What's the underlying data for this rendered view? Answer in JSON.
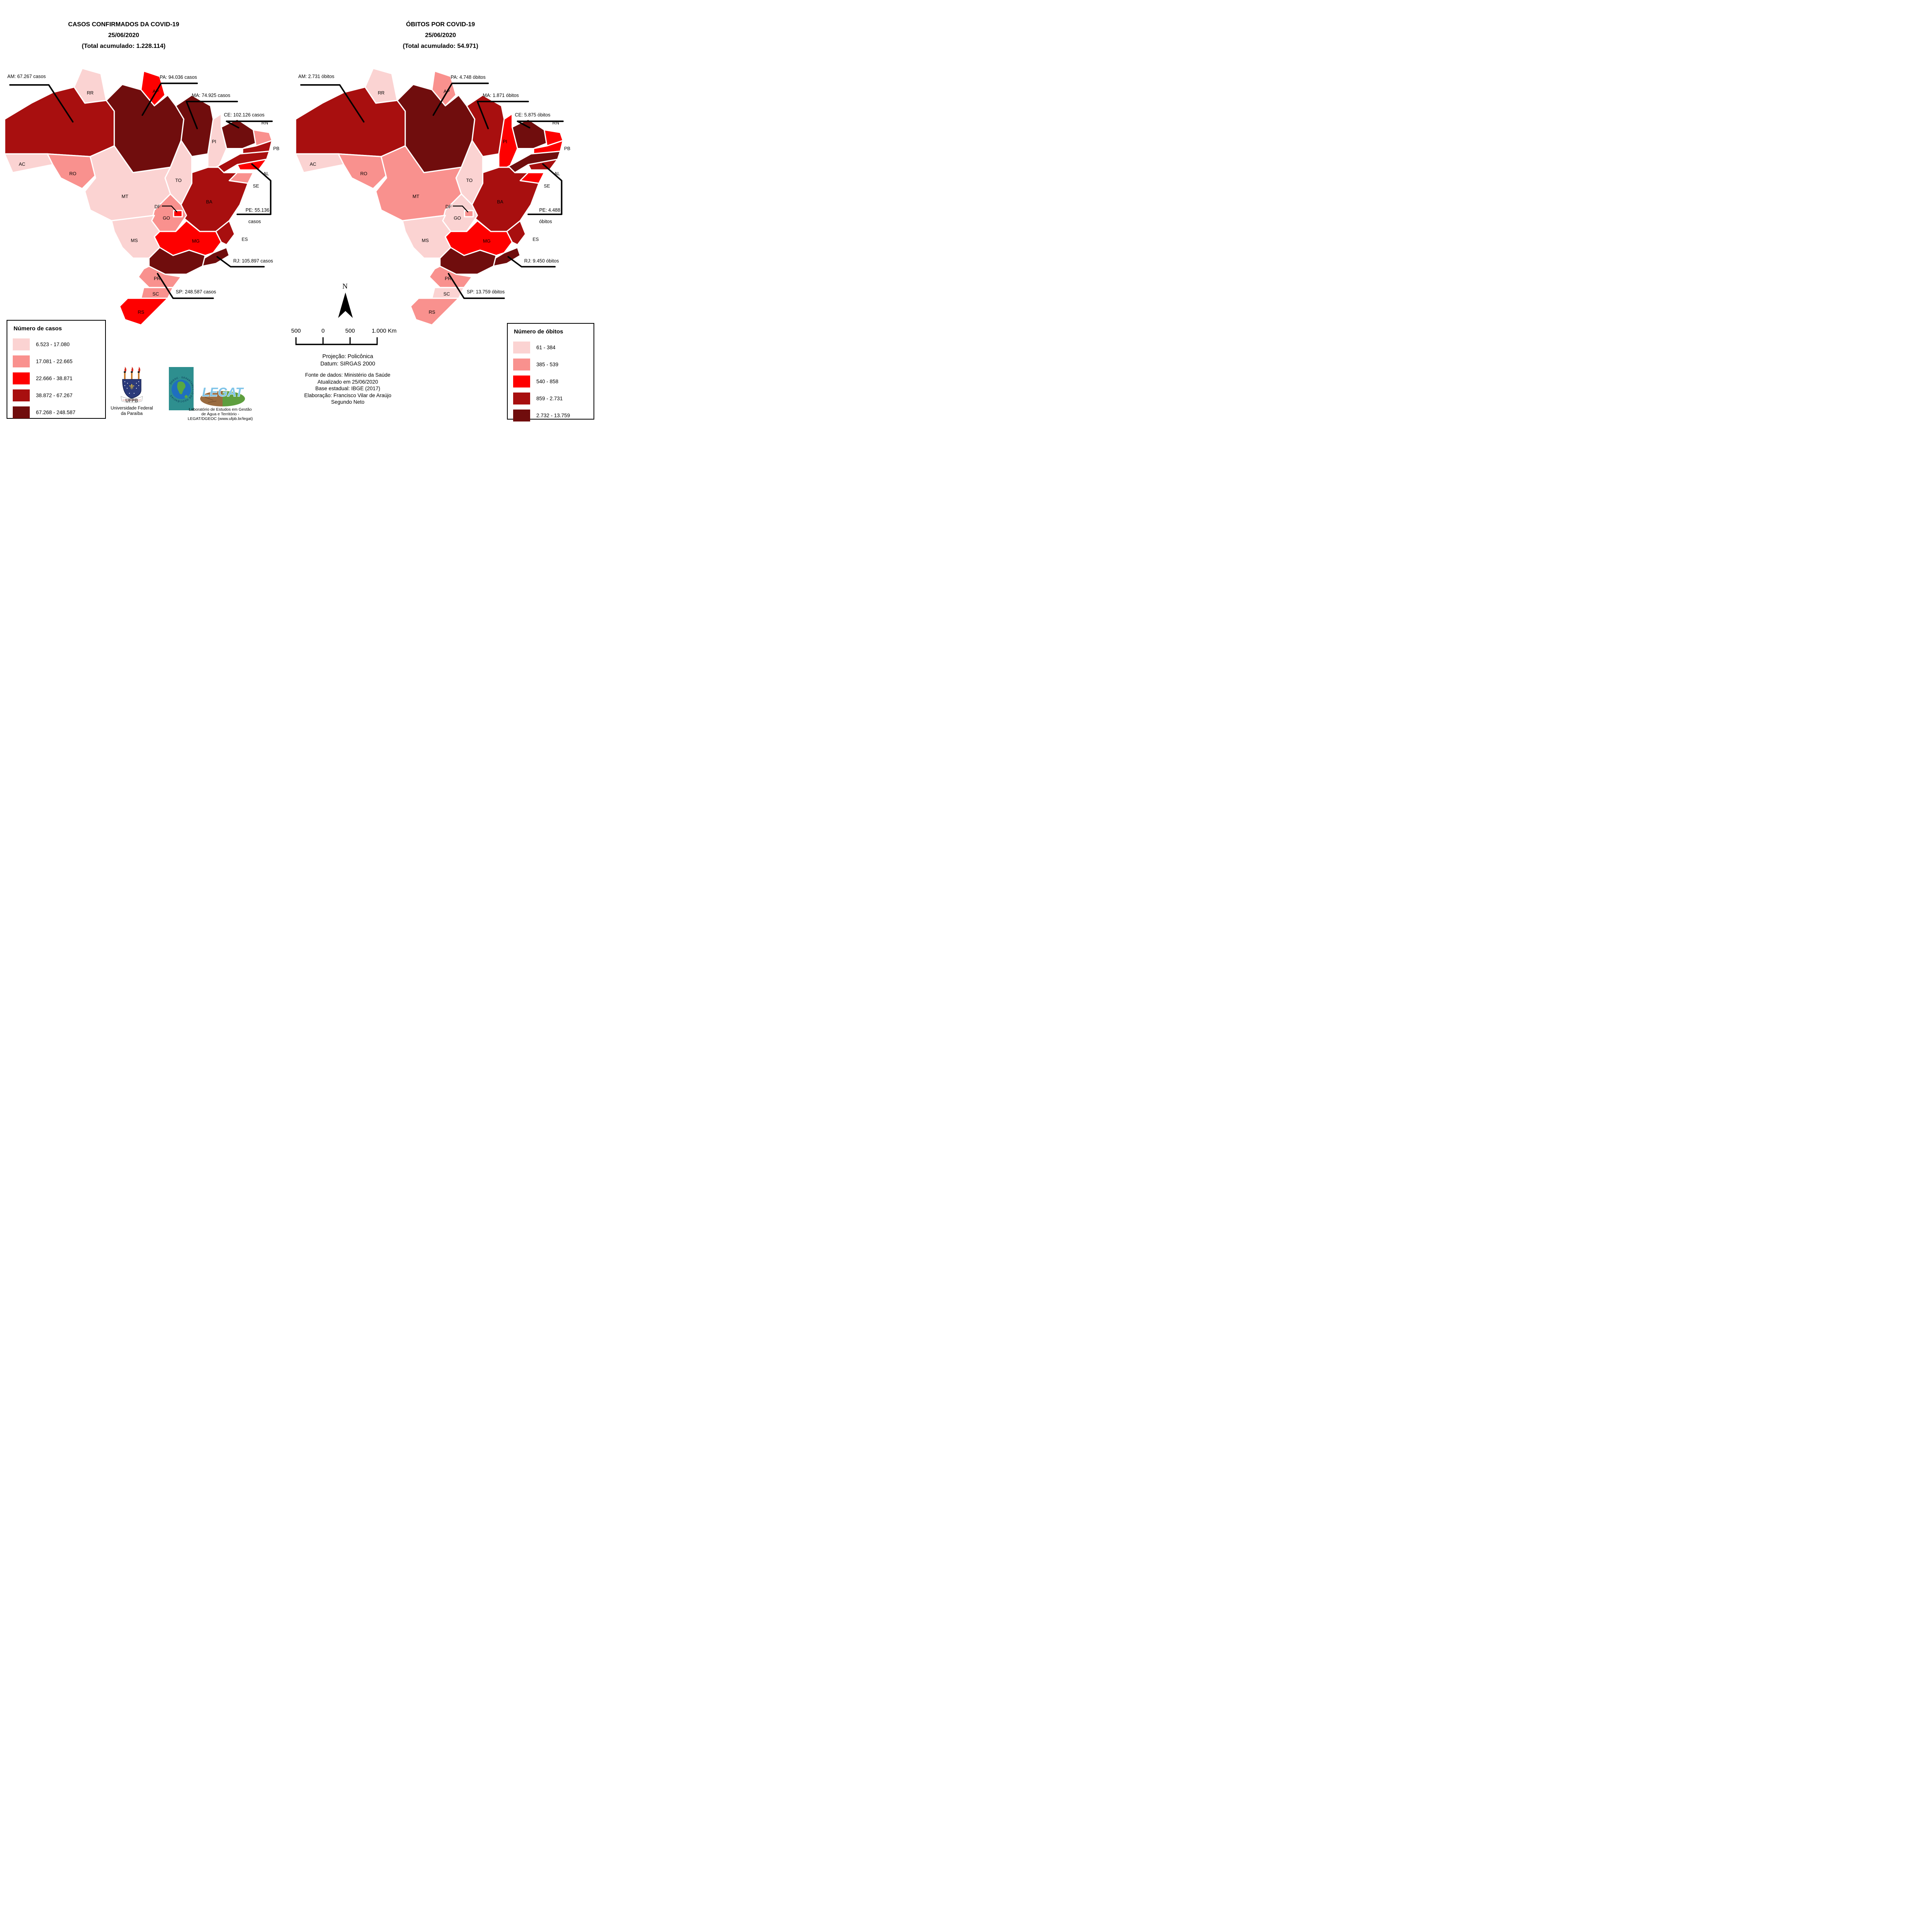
{
  "palette": {
    "c1": "#FBD3D2",
    "c2": "#F9918E",
    "c3": "#FE0000",
    "c4": "#A80F0F",
    "c5": "#700D0D",
    "border": "#FFFFFF",
    "line": "#000000"
  },
  "maps": {
    "cases": {
      "title": {
        "line1": "CASOS CONFIRMADOS DA COVID-19",
        "line2": "25/06/2020",
        "line3": "(Total acumulado: 1.228.114)"
      },
      "legend": {
        "title": "Número de casos",
        "items": [
          {
            "label": "6.523 - 17.080",
            "color": "#FBD3D2"
          },
          {
            "label": "17.081 - 22.665",
            "color": "#F9918E"
          },
          {
            "label": "22.666 - 38.871",
            "color": "#FE0000"
          },
          {
            "label": "38.872 - 67.267",
            "color": "#A80F0F"
          },
          {
            "label": "67.268 - 248.587",
            "color": "#700D0D"
          }
        ]
      },
      "callouts": {
        "AM": {
          "text": "AM: 67.267 casos"
        },
        "PA": {
          "text": "PA: 94.036 casos"
        },
        "MA": {
          "text": "MA: 74.925 casos"
        },
        "CE": {
          "text": "CE: 102.126 casos"
        },
        "PE": {
          "text": "PE: 55.136",
          "text2": "casos"
        },
        "RJ": {
          "text": "RJ: 105.897 casos"
        },
        "SP": {
          "text": "SP: 248.587 casos"
        }
      },
      "state_classes": {
        "AC": 1,
        "AM": 4,
        "RR": 1,
        "RO": 2,
        "PA": 5,
        "AP": 3,
        "TO": 1,
        "MA": 5,
        "PI": 1,
        "CE": 5,
        "RN": 2,
        "PB": 4,
        "PE": 4,
        "AL": 3,
        "SE": 2,
        "BA": 4,
        "MT": 1,
        "MS": 1,
        "GO": 2,
        "DF": 3,
        "MG": 3,
        "ES": 4,
        "RJ": 5,
        "SP": 5,
        "PR": 2,
        "SC": 2,
        "RS": 3
      }
    },
    "deaths": {
      "title": {
        "line1": "ÓBITOS POR COVID-19",
        "line2": "25/06/2020",
        "line3": "(Total acumulado: 54.971)"
      },
      "legend": {
        "title": "Número de óbitos",
        "items": [
          {
            "label": "61 - 384",
            "color": "#FBD3D2"
          },
          {
            "label": "385 - 539",
            "color": "#F9918E"
          },
          {
            "label": "540 - 858",
            "color": "#FE0000"
          },
          {
            "label": "859 - 2.731",
            "color": "#A80F0F"
          },
          {
            "label": "2.732 - 13.759",
            "color": "#700D0D"
          }
        ]
      },
      "callouts": {
        "AM": {
          "text": "AM: 2.731 óbitos"
        },
        "PA": {
          "text": "PA: 4.748 óbitos"
        },
        "MA": {
          "text": "MA: 1.871 óbitos"
        },
        "CE": {
          "text": "CE: 5.875 óbitos"
        },
        "PE": {
          "text": "PE: 4.488",
          "text2": "óbitos"
        },
        "RJ": {
          "text": "RJ: 9.450 óbitos"
        },
        "SP": {
          "text": "SP: 13.759 óbitos"
        }
      },
      "state_classes": {
        "AC": 1,
        "AM": 4,
        "RR": 1,
        "RO": 2,
        "PA": 5,
        "AP": 2,
        "TO": 1,
        "MA": 4,
        "PI": 3,
        "CE": 5,
        "RN": 3,
        "PB": 3,
        "PE": 5,
        "AL": 4,
        "SE": 3,
        "BA": 4,
        "MT": 2,
        "MS": 1,
        "GO": 1,
        "DF": 2,
        "MG": 3,
        "ES": 4,
        "RJ": 5,
        "SP": 5,
        "PR": 2,
        "SC": 1,
        "RS": 2
      }
    }
  },
  "center": {
    "north_label": "N",
    "scalebar_labels": [
      "500",
      "0",
      "500",
      "1.000 Km"
    ],
    "projection_line1": "Projeção: Policônica",
    "projection_line2": "Datum: SIRGAS 2000",
    "source_line1": "Fonte de dados: Ministério da Saúde",
    "source_line2": "Atualizado em 25/06/2020",
    "source_line3": "Base estadual: IBGE (2017)",
    "source_line4": "Elaboração: Francisco Vilar de Araújo",
    "source_line5": "Segundo Neto"
  },
  "credits": {
    "ufpb_motto": "SAPIENTIA ÆDIFICAT",
    "ufpb_acronym": "UFPB",
    "ufpb_name_line1": "Universidade Federal",
    "ufpb_name_line2": "da Paraíba",
    "dgeoc_ring_text": "· DGEOC · DEPARTAMENTO DE GEOCIÊNCIAS",
    "legat_logo_text": "LEGAT",
    "legat_caption_line1": "Laboratório de Estudos em Gestão",
    "legat_caption_line2": "de Água e Território -",
    "legat_caption_line3": "LEGAT/DGEOC (www.ufpb.br/legat)"
  },
  "chart_data": {
    "type": "choropleth",
    "region": "Brazil (states)",
    "date": "25/06/2020",
    "maps": [
      {
        "name": "Casos confirmados da COVID-19",
        "total": 1228114,
        "legend_title": "Número de casos",
        "class_breaks": [
          "6.523 - 17.080",
          "17.081 - 22.665",
          "22.666 - 38.871",
          "38.872 - 67.267",
          "67.268 - 248.587"
        ],
        "labeled_values": {
          "AM": 67267,
          "PA": 94036,
          "MA": 74925,
          "CE": 102126,
          "PE": 55136,
          "RJ": 105897,
          "SP": 248587
        },
        "state_class": {
          "AC": 1,
          "AM": 4,
          "RR": 1,
          "RO": 2,
          "PA": 5,
          "AP": 3,
          "TO": 1,
          "MA": 5,
          "PI": 1,
          "CE": 5,
          "RN": 2,
          "PB": 4,
          "PE": 4,
          "AL": 3,
          "SE": 2,
          "BA": 4,
          "MT": 1,
          "MS": 1,
          "GO": 2,
          "DF": 3,
          "MG": 3,
          "ES": 4,
          "RJ": 5,
          "SP": 5,
          "PR": 2,
          "SC": 2,
          "RS": 3
        }
      },
      {
        "name": "Óbitos por COVID-19",
        "total": 54971,
        "legend_title": "Número de óbitos",
        "class_breaks": [
          "61 - 384",
          "385 - 539",
          "540 - 858",
          "859 - 2.731",
          "2.732 - 13.759"
        ],
        "labeled_values": {
          "AM": 2731,
          "PA": 4748,
          "MA": 1871,
          "CE": 5875,
          "PE": 4488,
          "RJ": 9450,
          "SP": 13759
        },
        "state_class": {
          "AC": 1,
          "AM": 4,
          "RR": 1,
          "RO": 2,
          "PA": 5,
          "AP": 2,
          "TO": 1,
          "MA": 4,
          "PI": 3,
          "CE": 5,
          "RN": 3,
          "PB": 3,
          "PE": 5,
          "AL": 4,
          "SE": 3,
          "BA": 4,
          "MT": 2,
          "MS": 1,
          "GO": 1,
          "DF": 2,
          "MG": 3,
          "ES": 4,
          "RJ": 5,
          "SP": 5,
          "PR": 2,
          "SC": 1,
          "RS": 2
        }
      }
    ]
  }
}
